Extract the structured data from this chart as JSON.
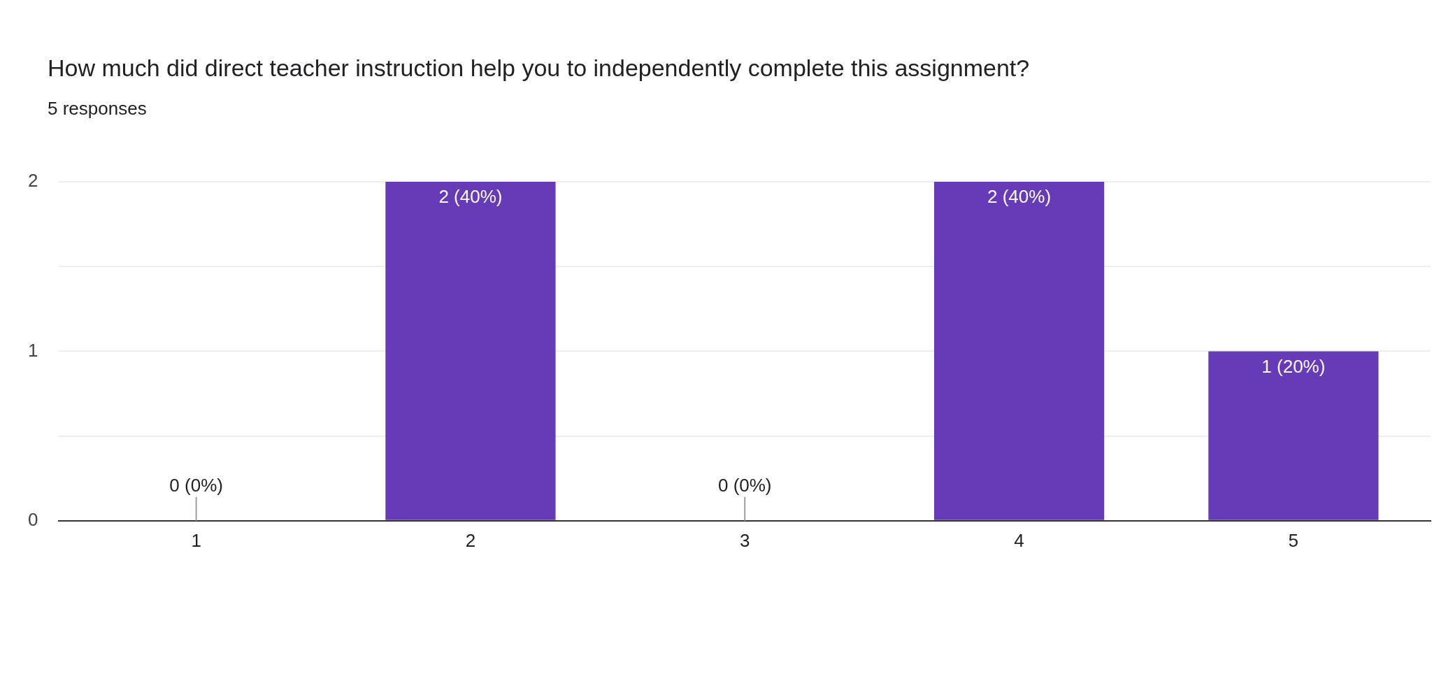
{
  "chart_data": {
    "type": "bar",
    "title": "How much did direct teacher instruction help you to independently complete this assignment?",
    "subtitle": "5 responses",
    "categories": [
      "1",
      "2",
      "3",
      "4",
      "5"
    ],
    "values": [
      0,
      2,
      0,
      2,
      1
    ],
    "value_labels": [
      "0 (0%)",
      "2 (40%)",
      "0 (0%)",
      "2 (40%)",
      "1 (20%)"
    ],
    "color": "#673ab7",
    "ylim": [
      0,
      2
    ],
    "yticks": [
      0,
      {
        "value": 0.5,
        "label": null
      },
      1,
      {
        "value": 1.5,
        "label": null
      },
      2
    ],
    "grid": "y",
    "legend": false
  }
}
